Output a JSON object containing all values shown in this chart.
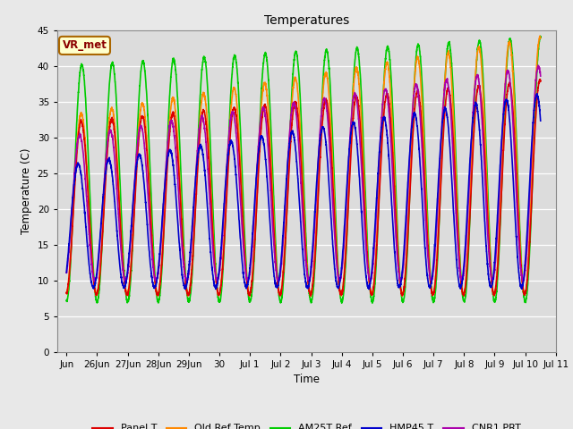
{
  "title": "Temperatures",
  "ylabel": "Temperature (C)",
  "xlabel": "Time",
  "xlim_days": [
    -0.3,
    15.5
  ],
  "ylim": [
    0,
    45
  ],
  "yticks": [
    0,
    5,
    10,
    15,
    20,
    25,
    30,
    35,
    40,
    45
  ],
  "figure_bg": "#e8e8e8",
  "plot_bg": "#dcdcdc",
  "annotation_text": "VR_met",
  "annotation_bg": "#ffffcc",
  "annotation_border": "#aa6600",
  "series_order": [
    "AM25T Ref",
    "Old Ref Temp",
    "Panel T",
    "CNR1 PRT",
    "HMP45 T"
  ],
  "series": {
    "Panel T": {
      "color": "#dd0000",
      "lw": 1.2
    },
    "Old Ref Temp": {
      "color": "#ff8800",
      "lw": 1.2
    },
    "AM25T Ref": {
      "color": "#00cc00",
      "lw": 1.2
    },
    "HMP45 T": {
      "color": "#0000cc",
      "lw": 1.2
    },
    "CNR1 PRT": {
      "color": "#aa00aa",
      "lw": 1.2
    }
  },
  "x_tick_labels": [
    "Jun",
    "26Jun",
    "27Jun",
    "28Jun",
    "29Jun",
    "30",
    "Jul 1",
    "Jul 2",
    "Jul 3",
    "Jul 4",
    "Jul 5",
    "Jul 6",
    "Jul 7",
    "Jul 8",
    "Jul 9",
    "Jul 10",
    "Jul 11"
  ],
  "x_tick_positions": [
    0,
    1,
    2,
    3,
    4,
    5,
    6,
    7,
    8,
    9,
    10,
    11,
    12,
    13,
    14,
    15,
    16
  ]
}
